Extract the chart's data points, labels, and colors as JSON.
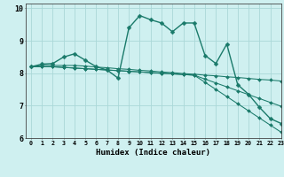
{
  "xlabel": "Humidex (Indice chaleur)",
  "bg_color": "#cff0f0",
  "grid_color": "#aad8d8",
  "line_color": "#1a7a6a",
  "xlim": [
    -0.5,
    23
  ],
  "ylim": [
    6,
    10.15
  ],
  "yticks": [
    6,
    7,
    8,
    9,
    10
  ],
  "xticks": [
    0,
    1,
    2,
    3,
    4,
    5,
    6,
    7,
    8,
    9,
    10,
    11,
    12,
    13,
    14,
    15,
    16,
    17,
    18,
    19,
    20,
    21,
    22,
    23
  ],
  "series": [
    [
      8.2,
      8.28,
      8.3,
      8.5,
      8.6,
      8.4,
      8.2,
      8.1,
      7.85,
      9.4,
      9.78,
      9.65,
      9.55,
      9.28,
      9.55,
      9.55,
      8.55,
      8.3,
      8.9,
      7.65,
      7.35,
      6.95,
      6.6,
      6.45
    ],
    [
      8.2,
      8.24,
      8.24,
      8.24,
      8.24,
      8.22,
      8.19,
      8.17,
      8.14,
      8.12,
      8.09,
      8.07,
      8.04,
      8.02,
      7.99,
      7.97,
      7.94,
      7.92,
      7.89,
      7.87,
      7.84,
      7.81,
      7.79,
      7.76
    ],
    [
      8.2,
      8.2,
      8.2,
      8.18,
      8.16,
      8.14,
      8.12,
      8.1,
      8.08,
      8.06,
      8.04,
      8.02,
      8.0,
      7.98,
      7.96,
      7.94,
      7.82,
      7.7,
      7.58,
      7.46,
      7.34,
      7.22,
      7.1,
      6.98
    ],
    [
      8.2,
      8.2,
      8.2,
      8.18,
      8.16,
      8.14,
      8.12,
      8.1,
      8.08,
      8.06,
      8.04,
      8.02,
      8.0,
      7.98,
      7.96,
      7.94,
      7.72,
      7.5,
      7.28,
      7.06,
      6.84,
      6.62,
      6.4,
      6.18
    ]
  ]
}
